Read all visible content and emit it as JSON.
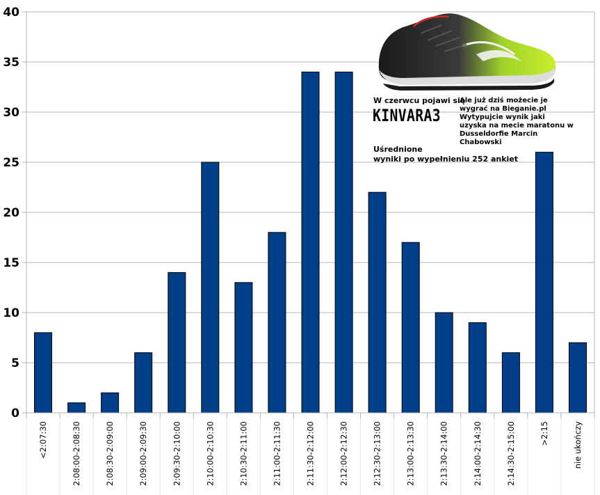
{
  "chart_data": {
    "type": "bar",
    "title": "",
    "xlabel": "",
    "ylabel": "",
    "ylim": [
      0,
      40
    ],
    "yticks": [
      "0",
      "5",
      "10",
      "15",
      "20",
      "25",
      "30",
      "35",
      "40"
    ],
    "grid": true,
    "bar_color": "#003f8a",
    "categories": [
      "<2:07:30",
      "2:08:00-2:08:30",
      "2:08:30-2:09:00",
      "2:09:00-2:09:30",
      "2:09:30-2:10:00",
      "2:10:00-2:10:30",
      "2:10:30-2:11:00",
      "2:11:00-2:11:30",
      "2:11:30-2:12:00",
      "2:12:00-2:12:30",
      "2:12:30-2:13:00",
      "2:13:00-2:13:30",
      "2:13:30-2:14:00",
      "2:14:00-2:14:30",
      "2:14:30-2:15:00",
      ">2:15",
      "nie ukończy"
    ],
    "values": [
      8,
      1,
      2,
      6,
      14,
      25,
      13,
      18,
      34,
      34,
      22,
      17,
      10,
      9,
      6,
      26,
      7
    ]
  },
  "promo": {
    "line1": "W czerwcu pojawi się",
    "brand": "KINVARA3",
    "side_text": "Ale już dziś możecie je wygrać na Bieganie.pl Wytypujcie wynik jaki uzyska na mecie maratonu w Dusseldorfie Marcin Chabowski",
    "note_line1": "Uśrednione",
    "note_line2": "wyniki po wypełnieniu 252 ankiet"
  }
}
